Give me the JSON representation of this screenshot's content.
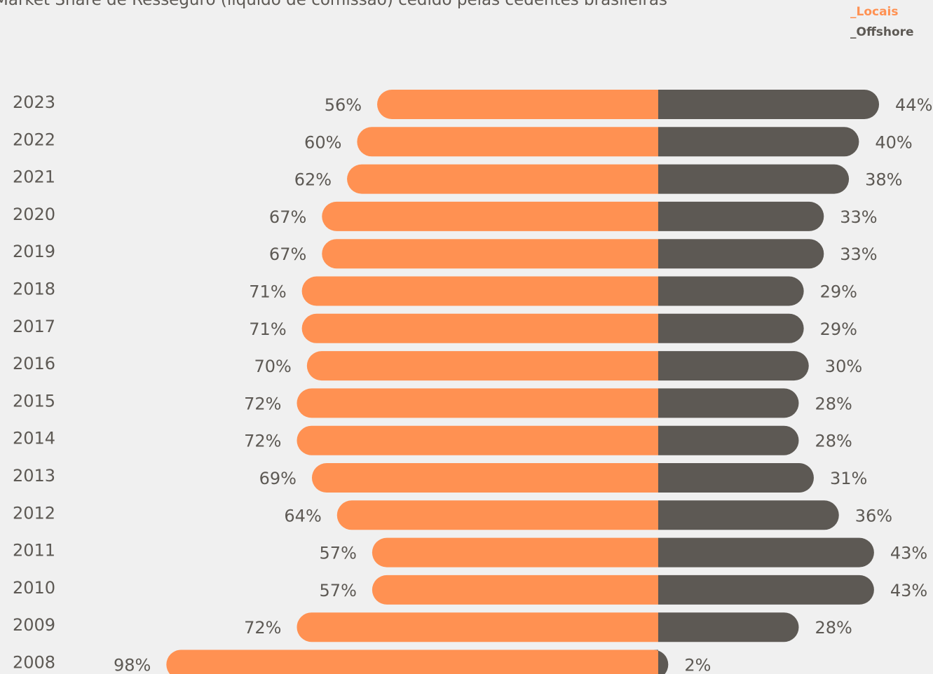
{
  "chart_data": {
    "type": "bar",
    "orientation": "horizontal-diverging",
    "title": "Market Share de Resseguro (líquido de comissão) cedido pelas cedentes brasileiras",
    "categories": [
      "2023",
      "2022",
      "2021",
      "2020",
      "2019",
      "2018",
      "2017",
      "2016",
      "2015",
      "2014",
      "2013",
      "2012",
      "2011",
      "2010",
      "2009",
      "2008"
    ],
    "series": [
      {
        "name": "_Locais",
        "color": "#ff9152",
        "values": [
          56,
          60,
          62,
          67,
          67,
          71,
          71,
          70,
          72,
          72,
          69,
          64,
          57,
          57,
          72,
          98
        ],
        "labels": [
          "56%",
          "60%",
          "62%",
          "67%",
          "67%",
          "71%",
          "71%",
          "70%",
          "72%",
          "72%",
          "69%",
          "64%",
          "57%",
          "57%",
          "72%",
          "98%"
        ]
      },
      {
        "name": "_Offshore",
        "color": "#5d5954",
        "values": [
          44,
          40,
          38,
          33,
          33,
          29,
          29,
          30,
          28,
          28,
          31,
          36,
          43,
          43,
          28,
          2
        ],
        "labels": [
          "44%",
          "40%",
          "38%",
          "33%",
          "33%",
          "29%",
          "29%",
          "30%",
          "28%",
          "28%",
          "31%",
          "36%",
          "43%",
          "43%",
          "28%",
          "2%"
        ]
      }
    ],
    "unit": "%",
    "legend_position": "top-right",
    "grid": false
  }
}
